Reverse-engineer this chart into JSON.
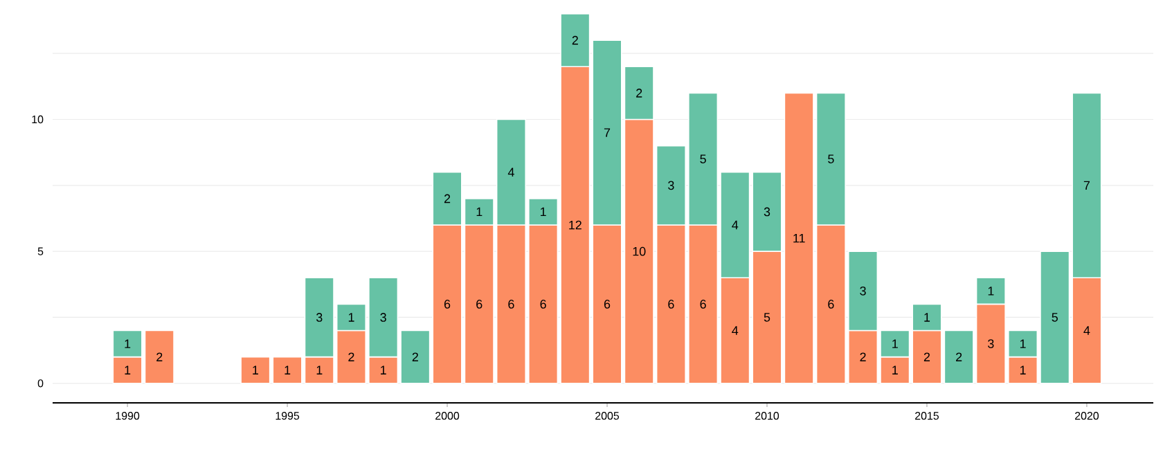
{
  "chart_data": {
    "type": "bar",
    "stacked": true,
    "data_labels": true,
    "grid": "y",
    "x": [
      1990,
      1991,
      1992,
      1993,
      1994,
      1995,
      1996,
      1997,
      1998,
      1999,
      2000,
      2001,
      2002,
      2003,
      2004,
      2005,
      2006,
      2007,
      2008,
      2009,
      2010,
      2011,
      2012,
      2013,
      2014,
      2015,
      2016,
      2017,
      2018,
      2019,
      2020
    ],
    "series": [
      {
        "color": "#fc8d62",
        "values": [
          1,
          2,
          null,
          null,
          1,
          1,
          1,
          2,
          1,
          null,
          6,
          6,
          6,
          6,
          12,
          6,
          10,
          6,
          6,
          4,
          5,
          11,
          6,
          2,
          1,
          2,
          null,
          3,
          1,
          null,
          4
        ]
      },
      {
        "color": "#66c2a5",
        "values": [
          1,
          null,
          null,
          null,
          null,
          null,
          3,
          1,
          3,
          2,
          2,
          1,
          4,
          1,
          2,
          7,
          2,
          3,
          5,
          4,
          3,
          null,
          5,
          3,
          1,
          1,
          2,
          1,
          1,
          5,
          7
        ]
      }
    ],
    "xlim": [
      1987.66,
      2022.08
    ],
    "xticks": [
      1990,
      1995,
      2000,
      2005,
      2010,
      2015,
      2020
    ],
    "ylim": [
      -0.74,
      14
    ],
    "yticks": [
      0,
      {
        "value": 2.5,
        "label": null
      },
      5,
      {
        "value": 7.5,
        "label": null
      },
      10,
      {
        "value": 12.5,
        "label": null
      }
    ]
  }
}
